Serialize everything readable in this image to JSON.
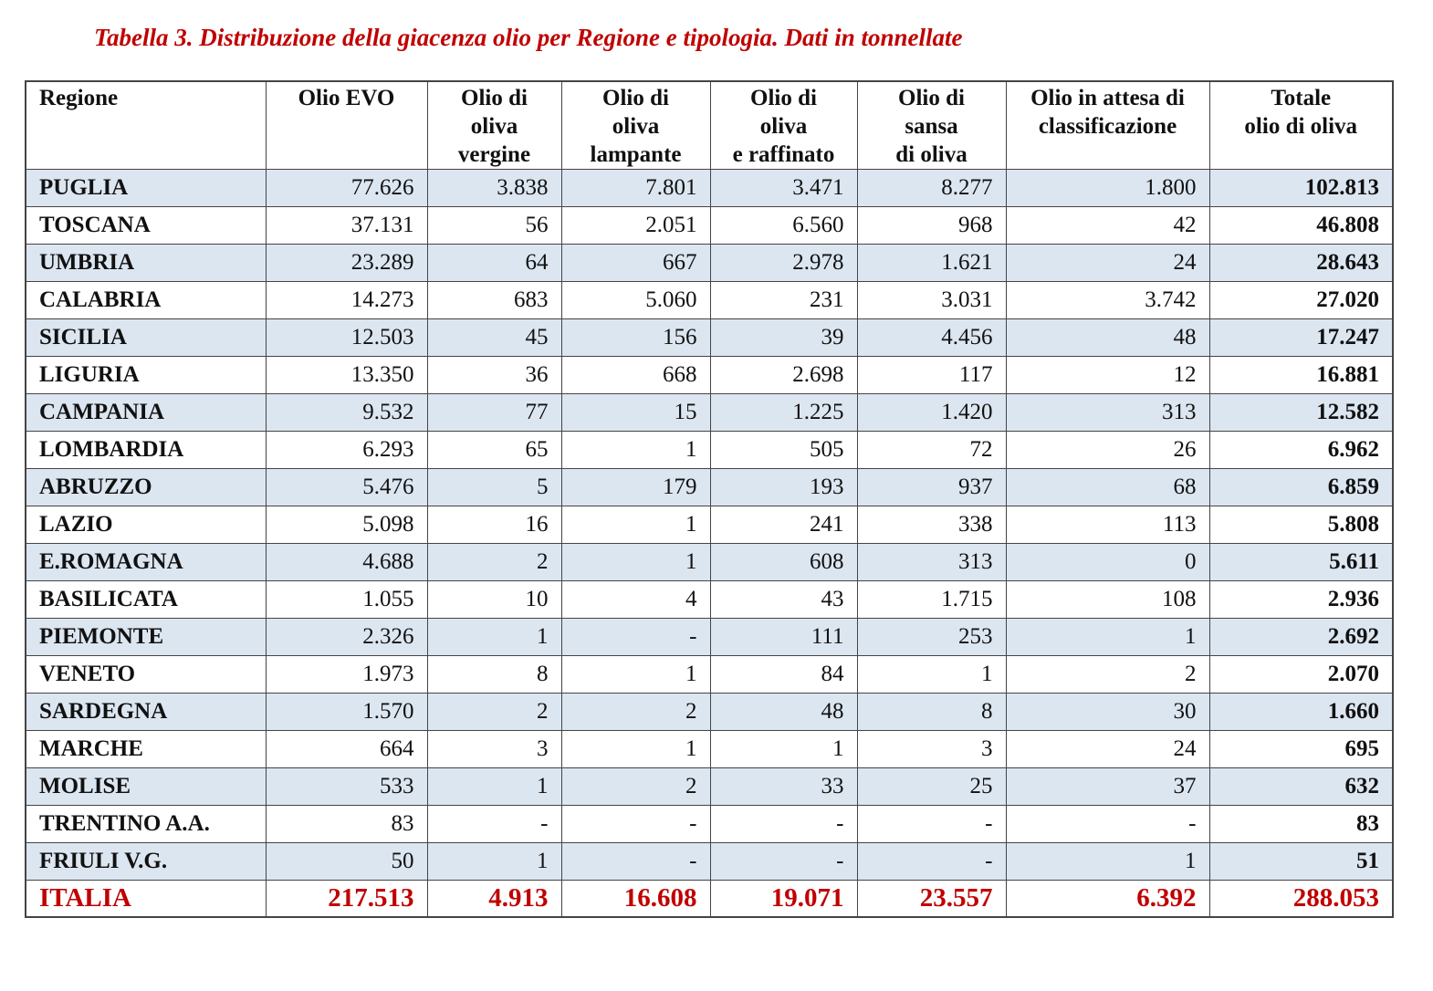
{
  "title": "Tabella 3. Distribuzione della giacenza olio per Regione e tipologia. Dati in tonnellate",
  "colors": {
    "title": "#c00000",
    "row_shade": "#dce6f1",
    "total_row": "#c00000"
  },
  "headers": [
    "Regione",
    "Olio EVO",
    "Olio di\noliva\nvergine",
    "Olio di\noliva\nlampante",
    "Olio di\noliva\ne raffinato",
    "Olio di\nsansa\ndi oliva",
    "Olio in attesa di\nclassificazione",
    "Totale\nolio di oliva"
  ],
  "rows": [
    [
      "PUGLIA",
      "77.626",
      "3.838",
      "7.801",
      "3.471",
      "8.277",
      "1.800",
      "102.813"
    ],
    [
      "TOSCANA",
      "37.131",
      "56",
      "2.051",
      "6.560",
      "968",
      "42",
      "46.808"
    ],
    [
      "UMBRIA",
      "23.289",
      "64",
      "667",
      "2.978",
      "1.621",
      "24",
      "28.643"
    ],
    [
      "CALABRIA",
      "14.273",
      "683",
      "5.060",
      "231",
      "3.031",
      "3.742",
      "27.020"
    ],
    [
      "SICILIA",
      "12.503",
      "45",
      "156",
      "39",
      "4.456",
      "48",
      "17.247"
    ],
    [
      "LIGURIA",
      "13.350",
      "36",
      "668",
      "2.698",
      "117",
      "12",
      "16.881"
    ],
    [
      "CAMPANIA",
      "9.532",
      "77",
      "15",
      "1.225",
      "1.420",
      "313",
      "12.582"
    ],
    [
      "LOMBARDIA",
      "6.293",
      "65",
      "1",
      "505",
      "72",
      "26",
      "6.962"
    ],
    [
      "ABRUZZO",
      "5.476",
      "5",
      "179",
      "193",
      "937",
      "68",
      "6.859"
    ],
    [
      "LAZIO",
      "5.098",
      "16",
      "1",
      "241",
      "338",
      "113",
      "5.808"
    ],
    [
      "E.ROMAGNA",
      "4.688",
      "2",
      "1",
      "608",
      "313",
      "0",
      "5.611"
    ],
    [
      "BASILICATA",
      "1.055",
      "10",
      "4",
      "43",
      "1.715",
      "108",
      "2.936"
    ],
    [
      "PIEMONTE",
      "2.326",
      "1",
      "-",
      "111",
      "253",
      "1",
      "2.692"
    ],
    [
      "VENETO",
      "1.973",
      "8",
      "1",
      "84",
      "1",
      "2",
      "2.070"
    ],
    [
      "SARDEGNA",
      "1.570",
      "2",
      "2",
      "48",
      "8",
      "30",
      "1.660"
    ],
    [
      "MARCHE",
      "664",
      "3",
      "1",
      "1",
      "3",
      "24",
      "695"
    ],
    [
      "MOLISE",
      "533",
      "1",
      "2",
      "33",
      "25",
      "37",
      "632"
    ],
    [
      "TRENTINO A.A.",
      "83",
      "-",
      "-",
      "-",
      "-",
      "-",
      "83"
    ],
    [
      "FRIULI V.G.",
      "50",
      "1",
      "-",
      "-",
      "-",
      "1",
      "51"
    ]
  ],
  "total": [
    "ITALIA",
    "217.513",
    "4.913",
    "16.608",
    "19.071",
    "23.557",
    "6.392",
    "288.053"
  ]
}
